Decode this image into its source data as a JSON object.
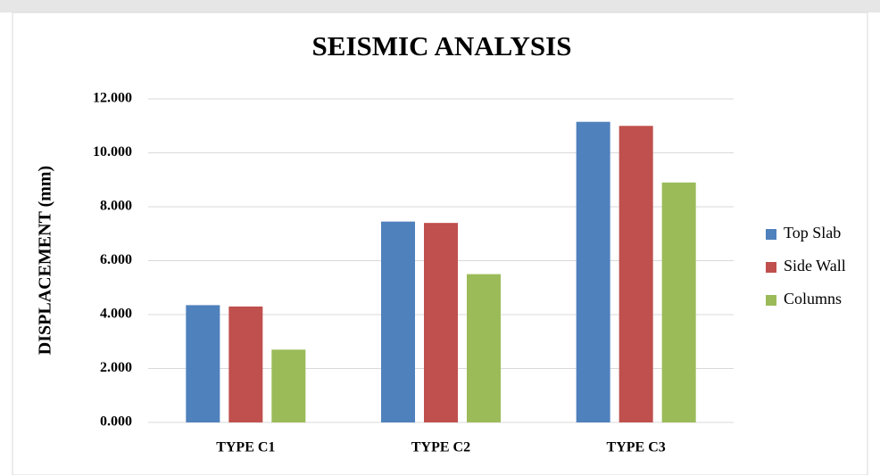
{
  "chart_data": {
    "type": "bar",
    "title": "SEISMIC ANALYSIS",
    "y_label": "DISPLACEMENT (mm)",
    "categories": [
      "TYPE C1",
      "TYPE C2",
      "TYPE C3"
    ],
    "series": [
      {
        "name": "Top Slab",
        "color": "#4f81bd",
        "values": [
          4.35,
          7.45,
          11.15
        ]
      },
      {
        "name": "Side Wall",
        "color": "#c0504d",
        "values": [
          4.3,
          7.4,
          11.0
        ]
      },
      {
        "name": "Columns",
        "color": "#9bbb59",
        "values": [
          2.7,
          5.5,
          8.9
        ]
      }
    ],
    "ylim": [
      0,
      12
    ],
    "yticks": [
      {
        "value": 0,
        "label": "0.000"
      },
      {
        "value": 2,
        "label": "2.000"
      },
      {
        "value": 4,
        "label": "4.000"
      },
      {
        "value": 6,
        "label": "6.000"
      },
      {
        "value": 8,
        "label": "8.000"
      },
      {
        "value": 10,
        "label": "10.000"
      },
      {
        "value": 12,
        "label": "12.000"
      }
    ],
    "grid": true,
    "legend": "right"
  }
}
